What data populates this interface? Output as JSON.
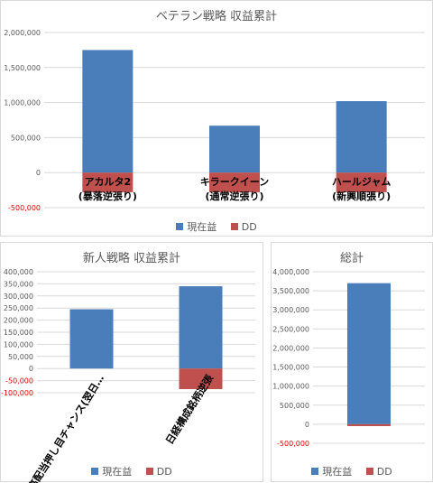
{
  "colors": {
    "profit": "#4a7ebb",
    "dd": "#c0504d",
    "grid": "#d9d9d9"
  },
  "chart_data": [
    {
      "type": "bar",
      "title": "ベテラン戦略 収益累計",
      "categories": [
        "アカルタ2",
        "キラークイーン",
        "ハールジャム"
      ],
      "category_sublabels": [
        "(暴落逆張り)",
        "(通常逆張り)",
        "(新興順張り)"
      ],
      "yticks": [
        "2,000,000",
        "1,500,000",
        "1,000,000",
        "500,000",
        "0",
        "-500,000"
      ],
      "ylim": [
        -500000,
        2000000
      ],
      "series": [
        {
          "name": "現在益",
          "values": [
            1750000,
            670000,
            1020000
          ]
        },
        {
          "name": "DD",
          "values": [
            -280000,
            -280000,
            -280000
          ]
        }
      ],
      "legend": [
        "現在益",
        "DD"
      ],
      "grid": true,
      "legend_position": "bottom"
    },
    {
      "type": "bar",
      "title": "新人戦略 収益累計",
      "categories": [
        "高配当押し目チャンス(翌日…",
        "日経構成銘柄逆張"
      ],
      "yticks": [
        "400,000",
        "350,000",
        "300,000",
        "250,000",
        "200,000",
        "150,000",
        "100,000",
        "50,000",
        "0",
        "-50,000",
        "-100,000"
      ],
      "ylim": [
        -100000,
        400000
      ],
      "series": [
        {
          "name": "現在益",
          "values": [
            245000,
            340000
          ]
        },
        {
          "name": "DD",
          "values": [
            0,
            -85000
          ]
        }
      ],
      "legend": [
        "現在益",
        "DD"
      ],
      "grid": true,
      "legend_position": "bottom"
    },
    {
      "type": "bar",
      "title": "総計",
      "categories": [
        ""
      ],
      "yticks": [
        "4,000,000",
        "3,500,000",
        "3,000,000",
        "2,500,000",
        "2,000,000",
        "1,500,000",
        "1,000,000",
        "500,000",
        "0",
        "-500,000"
      ],
      "ylim": [
        -500000,
        4000000
      ],
      "series": [
        {
          "name": "現在益",
          "values": [
            3700000
          ]
        },
        {
          "name": "DD",
          "values": [
            -50000
          ]
        }
      ],
      "legend": [
        "現在益",
        "DD"
      ],
      "grid": true,
      "legend_position": "bottom"
    }
  ]
}
